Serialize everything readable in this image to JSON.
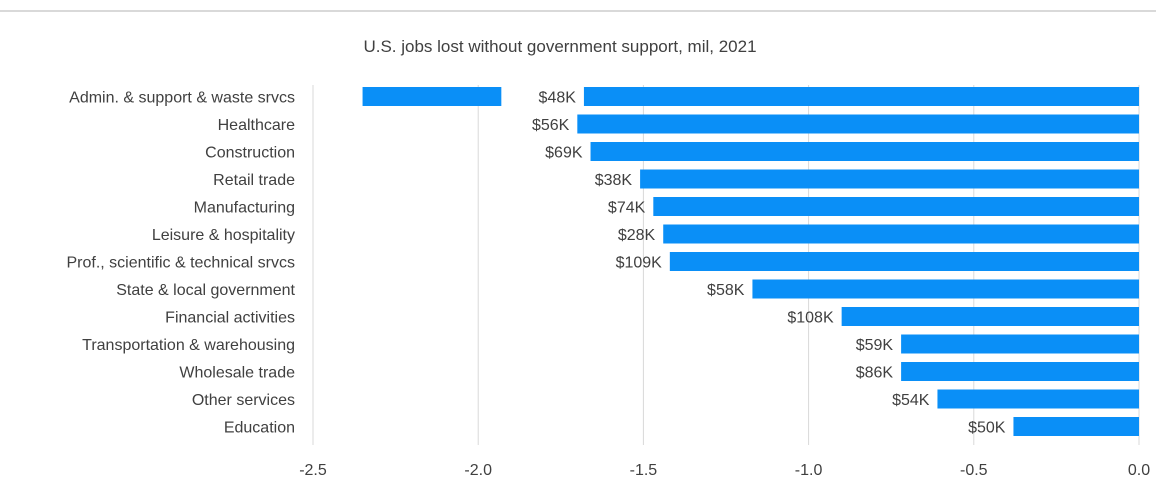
{
  "chart_data": {
    "type": "bar",
    "orientation": "horizontal",
    "title": "U.S. jobs lost without government support, mil, 2021",
    "xlabel": "",
    "ylabel": "",
    "xlim": [
      -2.5,
      0.0
    ],
    "x_ticks": [
      "-2.5",
      "-2.0",
      "-1.5",
      "-1.0",
      "-0.5",
      "0.0"
    ],
    "grid": "vertical",
    "legend": "none",
    "bar_color": "#0a8ff7",
    "categories": [
      "Admin. & support & waste srvcs",
      "Healthcare",
      "Construction",
      "Retail trade",
      "Manufacturing",
      "Leisure & hospitality",
      "Prof., scientific & technical srvcs",
      "State & local government",
      "Financial activities",
      "Transportation & warehousing",
      "Wholesale trade",
      "Other services",
      "Education"
    ],
    "values": [
      -1.68,
      -1.7,
      -1.66,
      -1.51,
      -1.47,
      -1.44,
      -1.42,
      -1.17,
      -0.9,
      -0.72,
      -0.72,
      -0.61,
      -0.38
    ],
    "extra_segments": [
      {
        "category": "Admin. & support & waste srvcs",
        "from": -2.35,
        "to": -1.93
      }
    ],
    "data_labels": [
      "$48K",
      "$56K",
      "$69K",
      "$38K",
      "$74K",
      "$28K",
      "$109K",
      "$58K",
      "$108K",
      "$59K",
      "$86K",
      "$54K",
      "$50K"
    ]
  }
}
